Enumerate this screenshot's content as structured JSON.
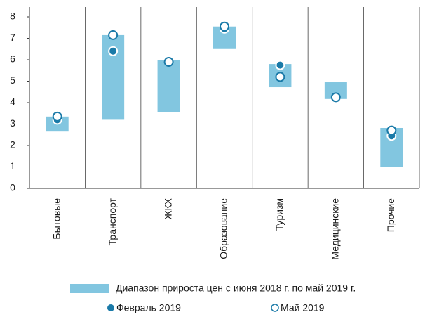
{
  "chart_data": {
    "type": "range_dot",
    "categories": [
      "Бытовые",
      "Транспорт",
      "ЖКХ",
      "Образование",
      "Туризм",
      "Медицинские",
      "Прочие"
    ],
    "series": [
      {
        "name": "Диапазон прироста цен с июня 2018 г. по май 2019 г.",
        "color": "#82c6e0",
        "low": [
          2.65,
          3.2,
          3.55,
          6.5,
          4.72,
          4.17,
          1.0
        ],
        "high": [
          3.35,
          7.15,
          5.97,
          7.55,
          5.8,
          4.95,
          2.82
        ]
      },
      {
        "name": "Февраль 2019",
        "color": "#1a7aa8",
        "marker": "filled",
        "values": [
          3.2,
          6.4,
          5.95,
          7.45,
          5.75,
          4.2,
          2.45
        ]
      },
      {
        "name": "Май 2019",
        "color": "#1a7aa8",
        "marker": "open",
        "values": [
          3.35,
          7.15,
          5.9,
          7.55,
          5.2,
          4.25,
          2.7
        ]
      }
    ],
    "ylim": [
      0,
      8
    ],
    "yticks": [
      0,
      1,
      2,
      3,
      4,
      5,
      6,
      7,
      8
    ]
  }
}
